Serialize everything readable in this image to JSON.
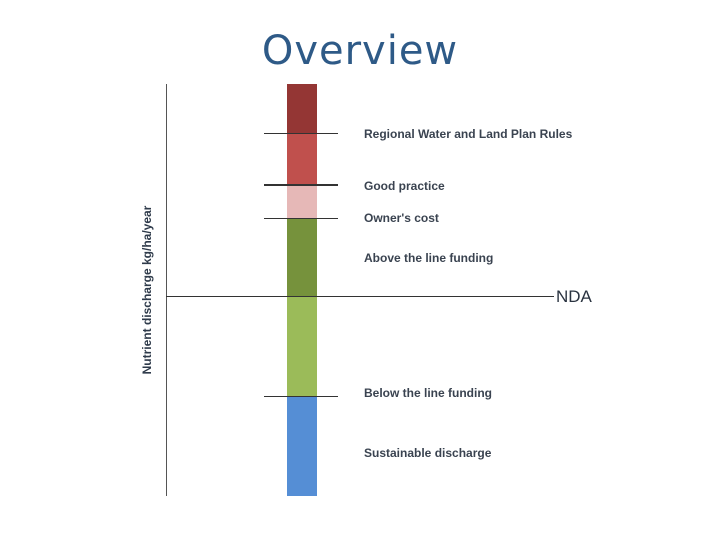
{
  "title": "Overview",
  "y_axis_label": "Nutrient discharge kg/ha/year",
  "zones": [
    {
      "label": "Regional Water and Land Plan Rules",
      "color": "#943634"
    },
    {
      "label": "Good practice",
      "color": "#c0504d"
    },
    {
      "label": "Owner's cost",
      "color": "#e6b8b7"
    },
    {
      "label": "Above the line funding",
      "color": "#76923c"
    },
    {
      "label": "Below the line funding",
      "color": "#9bbb59"
    },
    {
      "label": "Sustainable discharge",
      "color": "#558ed5"
    }
  ],
  "reference_line": {
    "label": "NDA"
  }
}
